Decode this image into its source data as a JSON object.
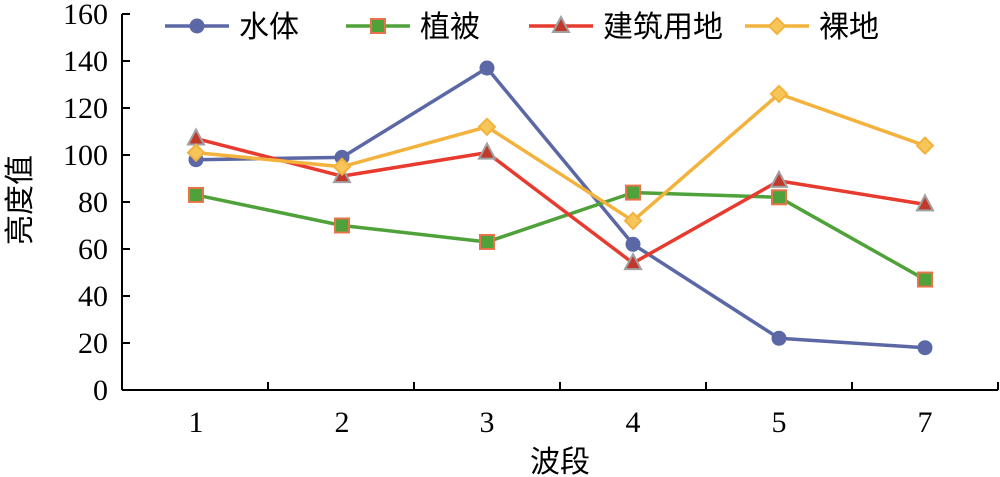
{
  "chart_data": {
    "type": "line",
    "title": "",
    "xlabel": "波段",
    "ylabel": "亮度值",
    "categories": [
      "1",
      "2",
      "3",
      "4",
      "5",
      "7"
    ],
    "ylim": [
      0,
      160
    ],
    "yticks": [
      0,
      20,
      40,
      60,
      80,
      100,
      120,
      140,
      160
    ],
    "grid": false,
    "legend_position": "top",
    "series": [
      {
        "name": "水体",
        "marker": "circle",
        "color": "#5b68a5",
        "values": [
          98,
          99,
          137,
          62,
          22,
          18
        ]
      },
      {
        "name": "植被",
        "marker": "square",
        "color": "#4fa23a",
        "marker_fill": "#4fa23a",
        "marker_stroke": "#e8734a",
        "values": [
          83,
          70,
          63,
          84,
          82,
          47
        ]
      },
      {
        "name": "建筑用地",
        "marker": "triangle",
        "color": "#e63b2e",
        "marker_fill": "#c0392b",
        "marker_stroke": "#a0a0a0",
        "values": [
          107,
          91,
          101,
          54,
          89,
          79
        ]
      },
      {
        "name": "裸地",
        "marker": "diamond",
        "color": "#f3b23c",
        "marker_fill": "#f7c65a",
        "marker_stroke": "#f3b23c",
        "values": [
          101,
          95,
          112,
          72,
          126,
          104
        ]
      }
    ]
  }
}
